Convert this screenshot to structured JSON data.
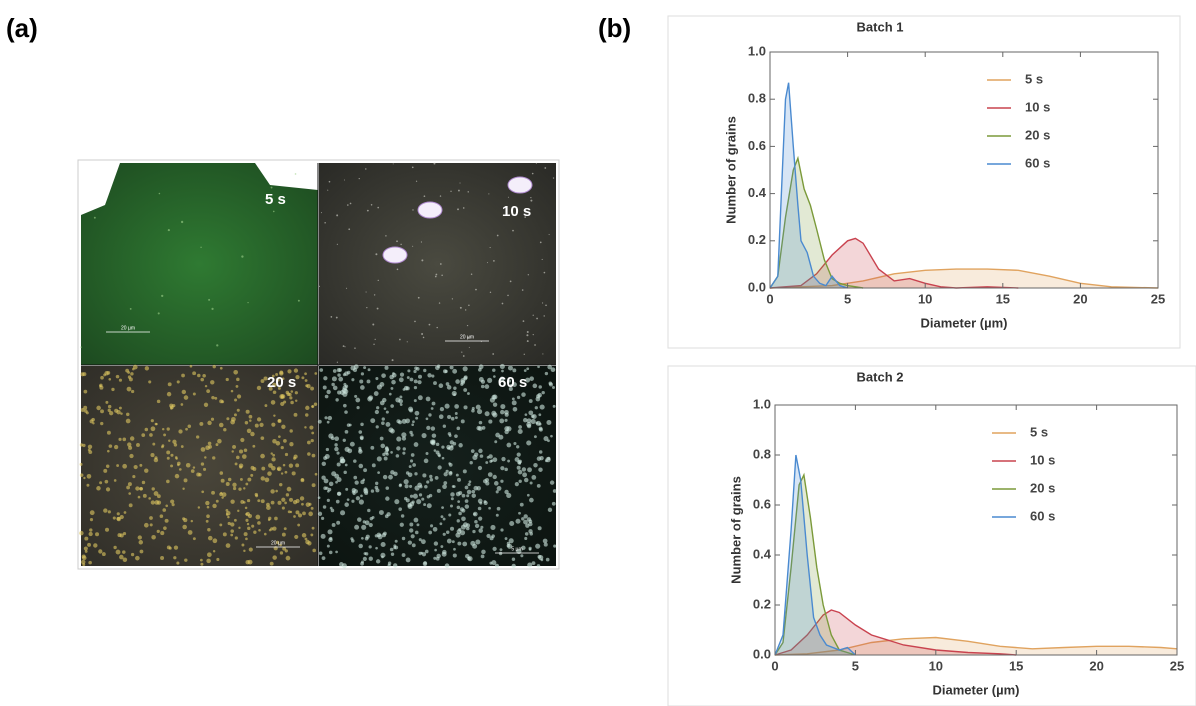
{
  "panels": [
    "(a)",
    "(b)"
  ],
  "micrographs": {
    "labels": [
      "5 s",
      "10 s",
      "20 s",
      "60 s"
    ],
    "scale_bars": [
      "20 µm",
      "20 µm",
      "20 µm",
      "5 µm"
    ]
  },
  "chart_data": [
    {
      "type": "area",
      "title": "Batch 1",
      "x_label": "Diameter (µm)",
      "y_label": "Number of grains",
      "xlim": [
        0,
        25
      ],
      "ylim": [
        0,
        1
      ],
      "xticks": [
        0,
        5,
        10,
        15,
        20,
        25
      ],
      "yticks": [
        {
          "value": 0,
          "label": "0.0"
        },
        {
          "value": 0.2,
          "label": "0.2"
        },
        {
          "value": 0.4,
          "label": "0.4"
        },
        {
          "value": 0.6,
          "label": "0.6"
        },
        {
          "value": 0.8,
          "label": "0.8"
        },
        {
          "value": 1,
          "label": "1.0"
        }
      ],
      "legend": "upper right",
      "series": [
        {
          "name": "5 s",
          "color": "#e0a35f",
          "x": [
            0,
            2,
            4,
            6,
            8,
            10,
            12,
            14,
            16,
            18,
            20,
            22,
            25
          ],
          "values": [
            0,
            0.005,
            0.01,
            0.03,
            0.06,
            0.075,
            0.08,
            0.08,
            0.075,
            0.05,
            0.02,
            0.005,
            0
          ]
        },
        {
          "name": "10 s",
          "color": "#c9434f",
          "x": [
            0,
            2,
            3,
            4,
            5,
            5.5,
            6,
            7,
            8,
            9,
            10,
            11,
            12,
            14,
            16
          ],
          "values": [
            0,
            0.01,
            0.06,
            0.14,
            0.2,
            0.21,
            0.19,
            0.08,
            0.03,
            0.04,
            0.02,
            0.005,
            0,
            0.005,
            0
          ]
        },
        {
          "name": "20 s",
          "color": "#7b9a3a",
          "x": [
            0,
            0.5,
            1,
            1.5,
            1.8,
            2.2,
            2.6,
            3,
            3.5,
            4,
            4.5,
            5,
            6
          ],
          "values": [
            0,
            0.05,
            0.3,
            0.5,
            0.55,
            0.42,
            0.35,
            0.25,
            0.12,
            0.04,
            0.02,
            0.01,
            0
          ]
        },
        {
          "name": "60 s",
          "color": "#4a8ad0",
          "x": [
            0,
            0.5,
            0.8,
            1,
            1.2,
            1.5,
            1.8,
            2,
            2.4,
            2.8,
            3.2,
            3.6,
            4,
            4.5,
            5
          ],
          "values": [
            0,
            0.05,
            0.5,
            0.8,
            0.87,
            0.6,
            0.35,
            0.2,
            0.15,
            0.05,
            0.02,
            0.01,
            0.05,
            0.01,
            0
          ]
        }
      ]
    },
    {
      "type": "area",
      "title": "Batch 2",
      "x_label": "Diameter (µm)",
      "y_label": "Number of grains",
      "xlim": [
        0,
        25
      ],
      "ylim": [
        0,
        1
      ],
      "xticks": [
        0,
        5,
        10,
        15,
        20,
        25
      ],
      "yticks": [
        {
          "value": 0,
          "label": "0.0"
        },
        {
          "value": 0.2,
          "label": "0.2"
        },
        {
          "value": 0.4,
          "label": "0.4"
        },
        {
          "value": 0.6,
          "label": "0.6"
        },
        {
          "value": 0.8,
          "label": "0.8"
        },
        {
          "value": 1,
          "label": "1.0"
        }
      ],
      "legend": "upper right",
      "series": [
        {
          "name": "5 s",
          "color": "#e0a35f",
          "x": [
            0,
            2,
            4,
            6,
            8,
            10,
            12,
            14,
            16,
            18,
            20,
            22,
            24,
            25
          ],
          "values": [
            0,
            0.005,
            0.02,
            0.05,
            0.065,
            0.07,
            0.055,
            0.035,
            0.025,
            0.03,
            0.035,
            0.035,
            0.03,
            0.025
          ]
        },
        {
          "name": "10 s",
          "color": "#c9434f",
          "x": [
            0,
            1,
            2,
            3,
            3.5,
            4,
            5,
            6,
            8,
            10,
            12,
            14,
            15
          ],
          "values": [
            0,
            0.02,
            0.08,
            0.16,
            0.18,
            0.17,
            0.12,
            0.08,
            0.04,
            0.02,
            0.01,
            0.005,
            0
          ]
        },
        {
          "name": "20 s",
          "color": "#7b9a3a",
          "x": [
            0,
            0.5,
            1,
            1.5,
            1.8,
            2.2,
            2.6,
            3,
            3.5,
            4,
            5
          ],
          "values": [
            0,
            0.05,
            0.35,
            0.68,
            0.72,
            0.55,
            0.35,
            0.2,
            0.08,
            0.02,
            0
          ]
        },
        {
          "name": "60 s",
          "color": "#4a8ad0",
          "x": [
            0,
            0.5,
            1,
            1.3,
            1.6,
            2,
            2.4,
            2.8,
            3.2,
            4,
            4.5,
            5
          ],
          "values": [
            0,
            0.08,
            0.5,
            0.8,
            0.7,
            0.4,
            0.15,
            0.08,
            0.04,
            0.02,
            0.03,
            0
          ]
        }
      ]
    }
  ]
}
